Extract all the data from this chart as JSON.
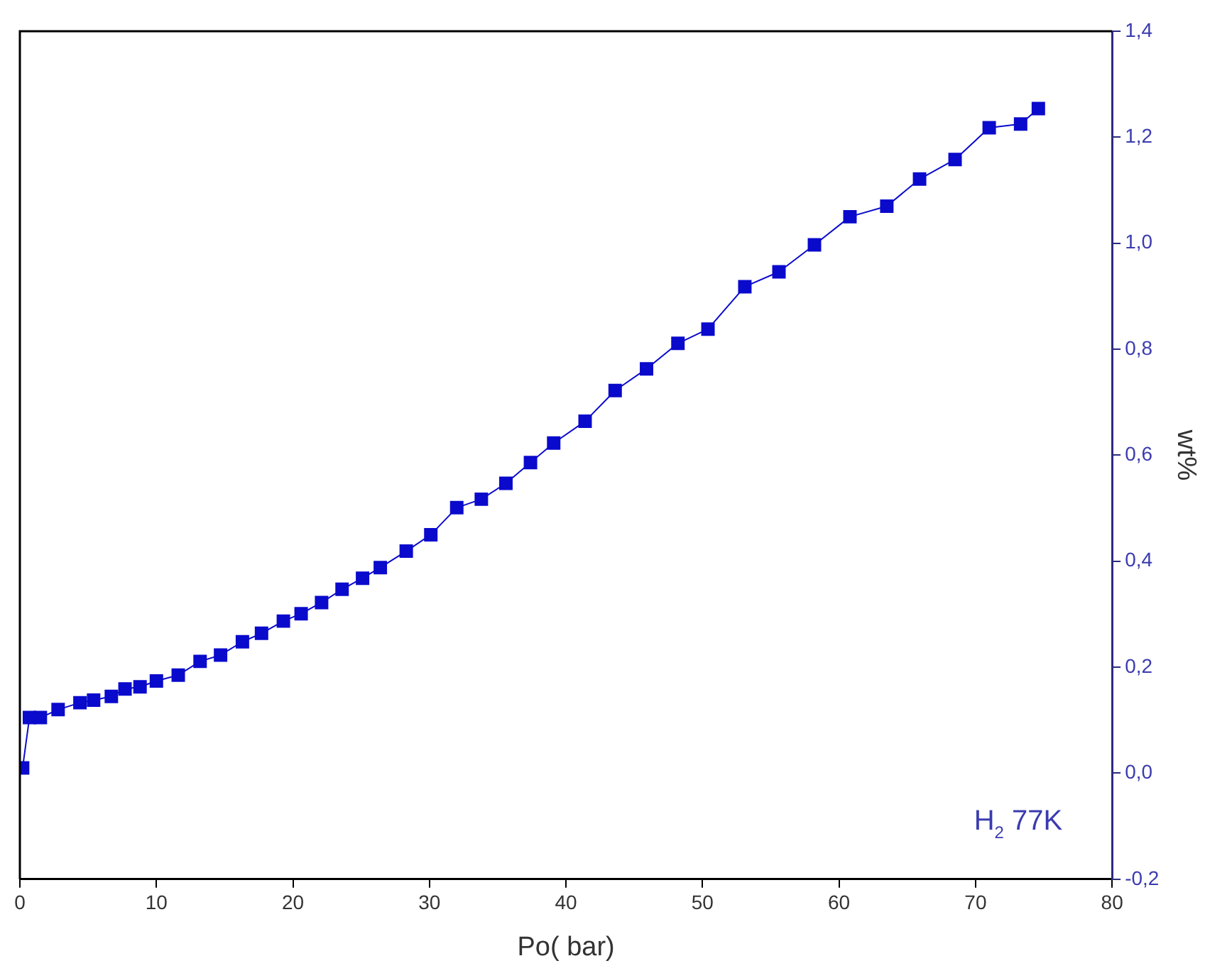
{
  "chart_data": {
    "type": "line",
    "xlabel": "Po( bar)",
    "ylabel": "wt%",
    "annotations": [
      "H$_{2}$ 77K"
    ],
    "x": [
      0.2,
      0.7,
      1.5,
      2.8,
      4.4,
      5.4,
      6.7,
      7.7,
      8.8,
      10.0,
      11.6,
      13.2,
      14.7,
      16.3,
      17.7,
      19.3,
      20.6,
      22.1,
      23.6,
      25.1,
      26.4,
      28.3,
      30.1,
      32.0,
      33.8,
      35.6,
      37.4,
      39.1,
      41.4,
      43.6,
      45.9,
      48.2,
      50.4,
      53.1,
      55.6,
      58.2,
      60.8,
      63.5,
      65.9,
      68.5,
      71.0,
      73.3,
      74.6
    ],
    "series": [
      {
        "color": "#0a0acc",
        "values": [
          0.01,
          0.105,
          0.105,
          0.12,
          0.133,
          0.138,
          0.145,
          0.159,
          0.163,
          0.174,
          0.185,
          0.211,
          0.223,
          0.248,
          0.264,
          0.287,
          0.301,
          0.322,
          0.347,
          0.368,
          0.388,
          0.419,
          0.45,
          0.501,
          0.517,
          0.547,
          0.586,
          0.623,
          0.664,
          0.722,
          0.763,
          0.811,
          0.838,
          0.918,
          0.946,
          0.997,
          1.05,
          1.07,
          1.121,
          1.158,
          1.218,
          1.225,
          1.254
        ]
      }
    ],
    "xlim": [
      0,
      80
    ],
    "xticks": [
      0,
      10,
      20,
      30,
      40,
      50,
      60,
      70,
      80
    ],
    "ylim": [
      -0.2,
      1.4
    ],
    "yticks": [
      {
        "value": -0.2,
        "label": "-0,2"
      },
      {
        "value": 0,
        "label": "0,0"
      },
      {
        "value": 0.2,
        "label": "0,2"
      },
      {
        "value": 0.4,
        "label": "0,4"
      },
      {
        "value": 0.6,
        "label": "0,6"
      },
      {
        "value": 0.8,
        "label": "0,8"
      },
      {
        "value": 1.0,
        "label": "1,0"
      },
      {
        "value": 1.2,
        "label": "1,2"
      },
      {
        "value": 1.4,
        "label": "1,4"
      }
    ],
    "grid": false,
    "legend": false,
    "marker": "square",
    "line_style": "solid"
  }
}
